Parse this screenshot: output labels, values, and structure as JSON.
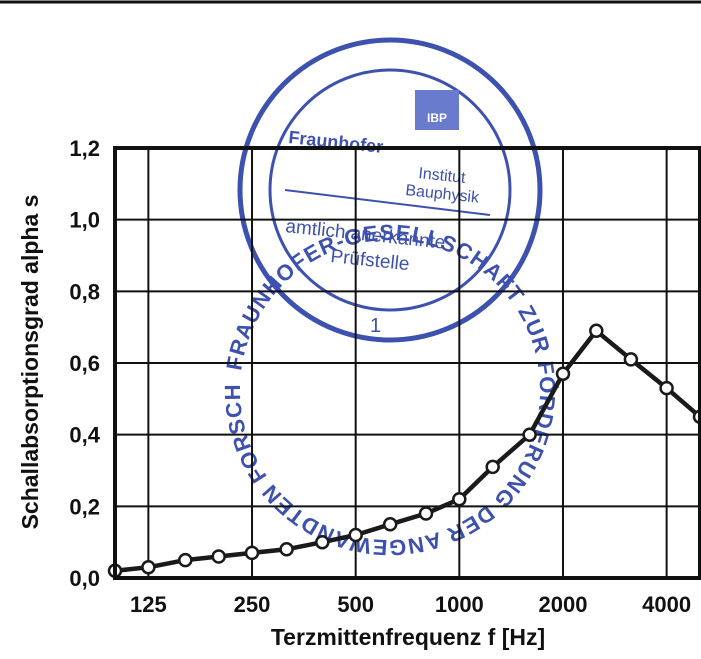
{
  "colors": {
    "plot_line": "#1a1a1a",
    "marker_fill": "#ffffff",
    "stamp_blue": "#2d43a8",
    "stamp_blue_light": "#5d70c8"
  },
  "stamp": {
    "ring_text": "FRAUNHOFER-GESELLSCHAFT ZUR FÖRDERUNG DER ANGEWANDTEN FORSCHUNG e.V.",
    "org": "Fraunhofer",
    "institute_line1": "Institut",
    "institute_line2": "Bauphysik",
    "badge": "IBP",
    "body_line1": "amtlich anerkannte",
    "body_line2": "Prüfstelle",
    "number": "1"
  },
  "chart_data": {
    "type": "line",
    "title": "",
    "xlabel": "Terzmittenfrequenz f [Hz]",
    "ylabel": "Schallabsorptionsgrad alpha s",
    "x_scale": "log",
    "xlim": [
      100,
      5000
    ],
    "ylim": [
      0,
      1.2
    ],
    "grid": true,
    "x_ticks": [
      125,
      250,
      500,
      1000,
      2000,
      4000
    ],
    "x_tick_labels": [
      "125",
      "250",
      "500",
      "1000",
      "2000",
      "4000"
    ],
    "y_ticks": [
      0,
      0.2,
      0.4,
      0.6,
      0.8,
      1.0,
      1.2
    ],
    "y_tick_labels": [
      "0,0",
      "0,2",
      "0,4",
      "0,6",
      "0,8",
      "1,0",
      "1,2"
    ],
    "series": [
      {
        "x": [
          100,
          125,
          160,
          200,
          250,
          315,
          400,
          500,
          630,
          800,
          1000,
          1250,
          1600,
          2000,
          2500,
          3150,
          4000,
          5000
        ],
        "values": [
          0.02,
          0.03,
          0.05,
          0.06,
          0.07,
          0.08,
          0.1,
          0.12,
          0.15,
          0.18,
          0.22,
          0.31,
          0.4,
          0.57,
          0.69,
          0.61,
          0.53,
          0.45
        ]
      }
    ]
  }
}
